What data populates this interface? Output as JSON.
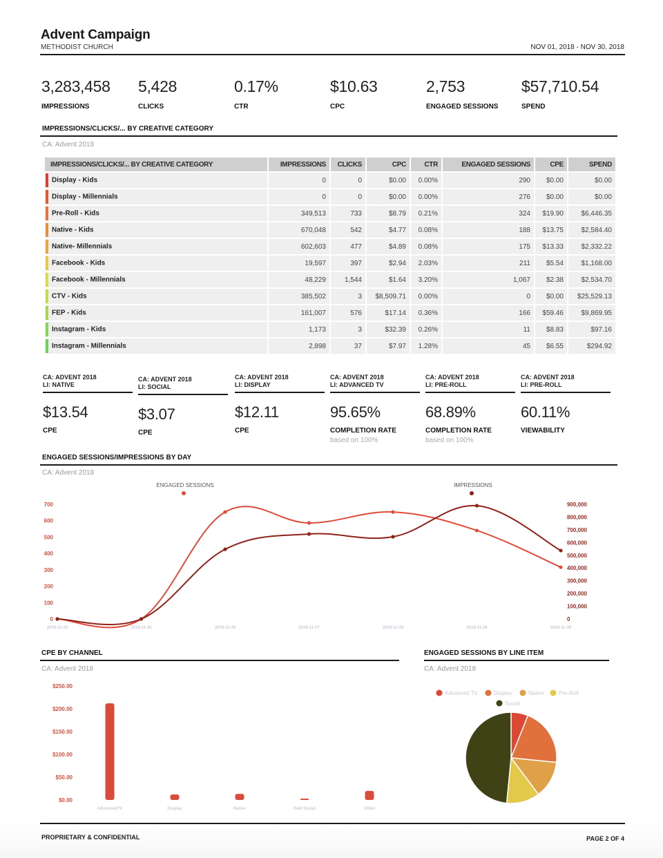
{
  "header": {
    "title": "Advent Campaign",
    "subtitle": "METHODIST CHURCH",
    "date_range": "NOV 01, 2018 - NOV 30, 2018"
  },
  "kpis": [
    {
      "value": "3,283,458",
      "label": "IMPRESSIONS"
    },
    {
      "value": "5,428",
      "label": "CLICKS"
    },
    {
      "value": "0.17%",
      "label": "CTR"
    },
    {
      "value": "$10.63",
      "label": "CPC"
    },
    {
      "value": "2,753",
      "label": "ENGAGED SESSIONS"
    },
    {
      "value": "$57,710.54",
      "label": "SPEND"
    }
  ],
  "creative_table": {
    "title": "IMPRESSIONS/CLICKS/... BY CREATIVE CATEGORY",
    "subtitle": "CA: Advent 2018",
    "headers": [
      "IMPRESSIONS/CLICKS/... BY CREATIVE CATEGORY",
      "IMPRESSIONS",
      "CLICKS",
      "CPC",
      "CTR",
      "ENGAGED SESSIONS",
      "CPE",
      "SPEND"
    ],
    "rows": [
      {
        "name": "Display - Kids",
        "color": "#d9412e",
        "cells": [
          "0",
          "0",
          "$0.00",
          "0.00%",
          "290",
          "$0.00",
          "$0.00"
        ]
      },
      {
        "name": "Display - Millennials",
        "color": "#de5a35",
        "cells": [
          "0",
          "0",
          "$0.00",
          "0.00%",
          "276",
          "$0.00",
          "$0.00"
        ]
      },
      {
        "name": "Pre-Roll - Kids",
        "color": "#e2763a",
        "cells": [
          "349,513",
          "733",
          "$8.79",
          "0.21%",
          "324",
          "$19.90",
          "$6,446.35"
        ]
      },
      {
        "name": "Native - Kids",
        "color": "#e48e3e",
        "cells": [
          "670,048",
          "542",
          "$4.77",
          "0.08%",
          "188",
          "$13.75",
          "$2,584.40"
        ]
      },
      {
        "name": "Native- Millennials",
        "color": "#e5a843",
        "cells": [
          "602,603",
          "477",
          "$4.89",
          "0.08%",
          "175",
          "$13.33",
          "$2,332.22"
        ]
      },
      {
        "name": "Facebook - Kids",
        "color": "#e4c94a",
        "cells": [
          "19,597",
          "397",
          "$2.94",
          "2.03%",
          "211",
          "$5.54",
          "$1,168.00"
        ]
      },
      {
        "name": "Facebook - Millennials",
        "color": "#dbdb4e",
        "cells": [
          "48,229",
          "1,544",
          "$1.64",
          "3.20%",
          "1,067",
          "$2.38",
          "$2,534.70"
        ]
      },
      {
        "name": "CTV - Kids",
        "color": "#c2dc52",
        "cells": [
          "385,502",
          "3",
          "$8,509.71",
          "0.00%",
          "0",
          "$0.00",
          "$25,529.13"
        ]
      },
      {
        "name": "FEP - Kids",
        "color": "#a4d854",
        "cells": [
          "161,007",
          "576",
          "$17.14",
          "0.36%",
          "166",
          "$59.46",
          "$9,869.95"
        ]
      },
      {
        "name": "Instagram - Kids",
        "color": "#86d556",
        "cells": [
          "1,173",
          "3",
          "$32.39",
          "0.26%",
          "11",
          "$8.83",
          "$97.16"
        ]
      },
      {
        "name": "Instagram - Millennials",
        "color": "#6fd358",
        "cells": [
          "2,898",
          "37",
          "$7.97",
          "1.28%",
          "45",
          "$6.55",
          "$294.92"
        ]
      }
    ]
  },
  "cards": [
    {
      "ca": "CA: ADVENT 2018",
      "li": "LI: NATIVE",
      "value": "$13.54",
      "label": "CPE",
      "note": ""
    },
    {
      "ca": "CA: ADVENT 2018",
      "li": "LI: SOCIAL",
      "value": "$3.07",
      "label": "CPE",
      "note": ""
    },
    {
      "ca": "CA: ADVENT 2018",
      "li": "LI: DISPLAY",
      "value": "$12.11",
      "label": "CPE",
      "note": ""
    },
    {
      "ca": "CA: ADVENT 2018",
      "li": "LI: ADVANCED TV",
      "value": "95.65%",
      "label": "COMPLETION RATE",
      "note": "based on 100%"
    },
    {
      "ca": "CA: ADVENT 2018",
      "li": "LI: PRE-ROLL",
      "value": "68.89%",
      "label": "COMPLETION RATE",
      "note": "based on 100%"
    },
    {
      "ca": "CA: ADVENT 2018",
      "li": "LI: PRE-ROLL",
      "value": "60.11%",
      "label": "VIEWABILITY",
      "note": ""
    }
  ],
  "line_section": {
    "title": "ENGAGED SESSIONS/IMPRESSIONS BY DAY",
    "subtitle": "CA: Advent 2018"
  },
  "cpe_section": {
    "title": "CPE BY CHANNEL",
    "subtitle": "CA: Advent 2018"
  },
  "pie_section": {
    "title": "ENGAGED SESSIONS BY LINE ITEM",
    "subtitle": "CA: Advent 2018"
  },
  "footer": {
    "left": "PROPRIETARY & CONFIDENTIAL",
    "right": "PAGE 2 OF 4"
  },
  "chart_data": [
    {
      "type": "line",
      "title": "ENGAGED SESSIONS/IMPRESSIONS BY DAY",
      "x": [
        "2018-11-23",
        "2018-11-25",
        "2018-11-26",
        "2018-11-27",
        "2018-11-28",
        "2018-11-29",
        "2018-11-30"
      ],
      "series": [
        {
          "name": "ENGAGED SESSIONS",
          "axis": "left",
          "color": "#e04b3a",
          "values": [
            0,
            0,
            653,
            586,
            653,
            540,
            316
          ]
        },
        {
          "name": "IMPRESSIONS",
          "axis": "right",
          "color": "#8e2219",
          "values": [
            0,
            0,
            547000,
            667000,
            645000,
            889000,
            537000
          ]
        }
      ],
      "yleft": {
        "ticks": [
          "0",
          "100",
          "200",
          "300",
          "400",
          "500",
          "600",
          "700"
        ],
        "range": [
          0,
          700
        ]
      },
      "yright": {
        "ticks": [
          "0",
          "100,000",
          "200,000",
          "300,000",
          "400,000",
          "500,000",
          "600,000",
          "700,000",
          "800,000",
          "900,000"
        ],
        "range": [
          0,
          900000
        ]
      },
      "legend": "top",
      "grid": false
    },
    {
      "type": "bar",
      "title": "CPE BY CHANNEL",
      "categories": [
        "AdvancedTV",
        "Display",
        "Native",
        "Paid Social",
        "Video"
      ],
      "values": [
        212.0,
        12.11,
        13.54,
        3.07,
        19.9
      ],
      "color": "#d94b3a",
      "yticks": [
        "$0.00",
        "$50.00",
        "$100.00",
        "$150.00",
        "$200.00",
        "$250.00"
      ],
      "ylim": [
        0,
        250
      ],
      "grid": false
    },
    {
      "type": "pie",
      "title": "ENGAGED SESSIONS BY LINE ITEM",
      "labels": [
        "Advanced TV",
        "Display",
        "Native",
        "Pre-Roll",
        "Social"
      ],
      "values": [
        166,
        566,
        363,
        324,
        1334
      ],
      "colors": [
        "#dd4733",
        "#e0703c",
        "#e0a047",
        "#e2c94a",
        "#3f4214"
      ],
      "legend": "top"
    }
  ]
}
